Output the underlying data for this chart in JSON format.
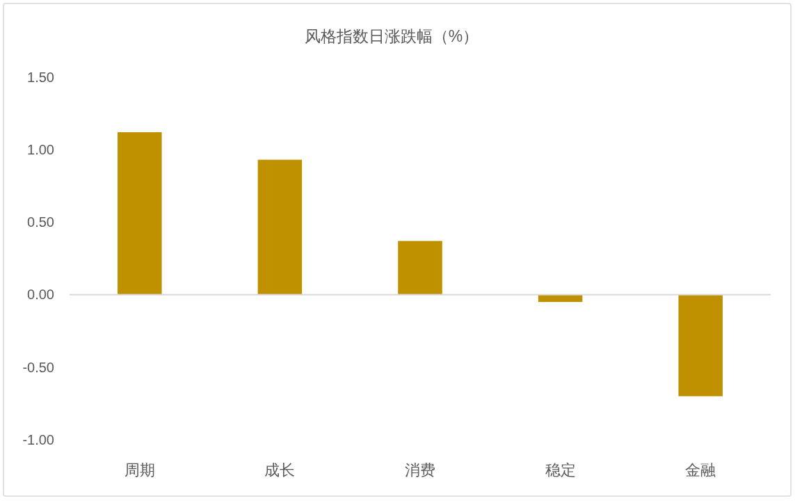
{
  "chart_data": {
    "type": "bar",
    "title": "风格指数日涨跌幅（%）",
    "categories": [
      "周期",
      "成长",
      "消费",
      "稳定",
      "金融"
    ],
    "values": [
      1.12,
      0.93,
      0.37,
      -0.05,
      -0.7
    ],
    "color": "#bf9000",
    "ylim": [
      -1.0,
      1.5
    ],
    "yticks": [
      {
        "value": 1.5,
        "label": "1.50"
      },
      {
        "value": 1.0,
        "label": "1.00"
      },
      {
        "value": 0.5,
        "label": "0.50"
      },
      {
        "value": 0.0,
        "label": "0.00"
      },
      {
        "value": -0.5,
        "label": "-0.50"
      },
      {
        "value": -1.0,
        "label": "-1.00"
      }
    ],
    "ref_lines": [
      {
        "axis": "y",
        "value": 0,
        "color": "#d9d9d9"
      }
    ],
    "grid": false,
    "legend": false
  }
}
